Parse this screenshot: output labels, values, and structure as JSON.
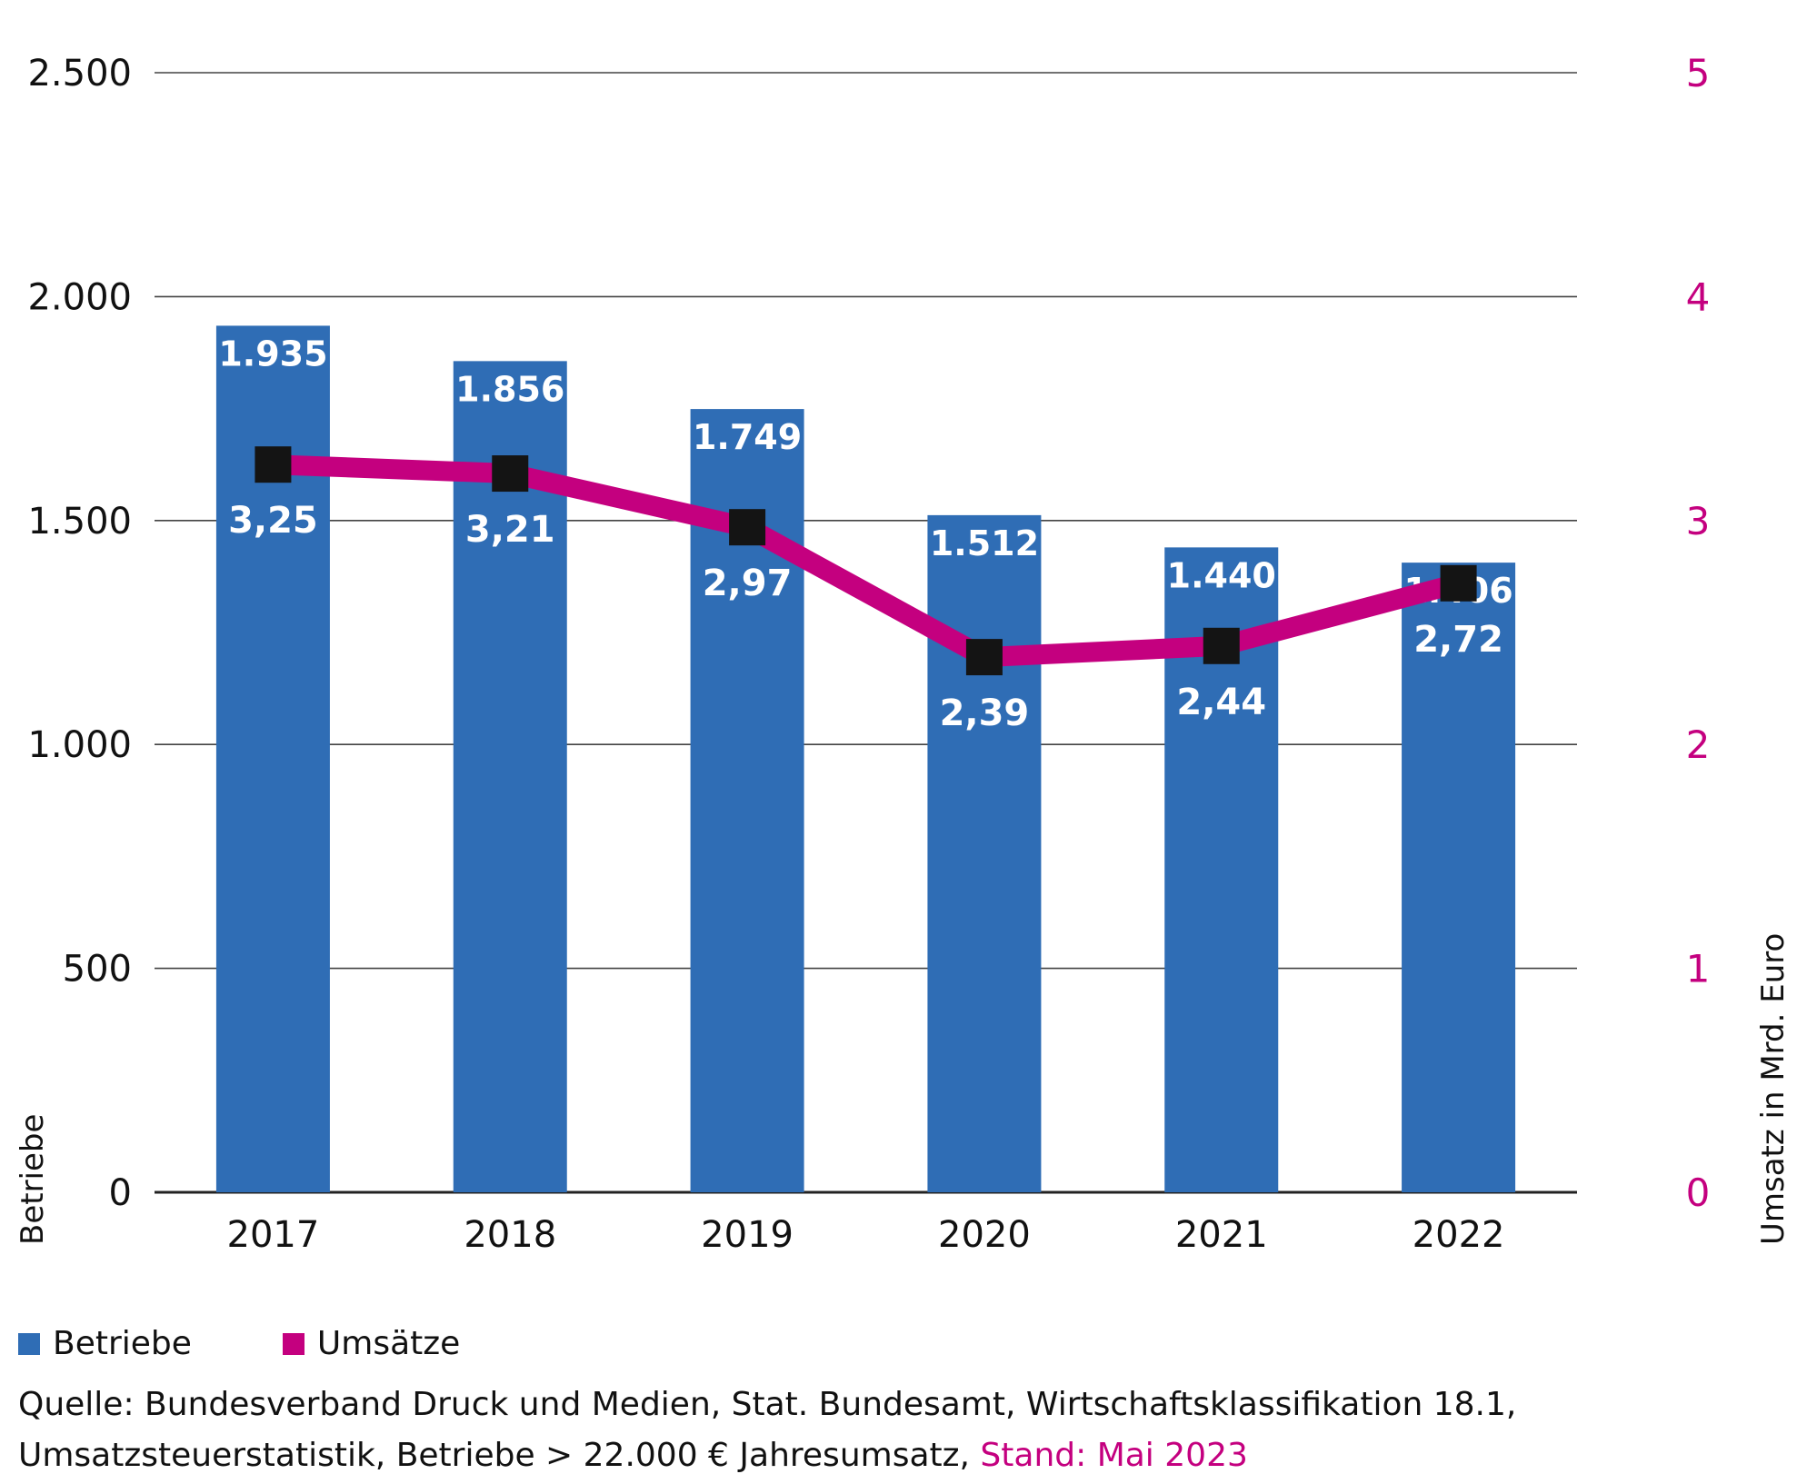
{
  "chart_data": {
    "type": "bar+line",
    "categories": [
      "2017",
      "2018",
      "2019",
      "2020",
      "2021",
      "2022"
    ],
    "series": [
      {
        "name": "Betriebe",
        "type": "bar",
        "axis": "left",
        "values": [
          1935,
          1856,
          1749,
          1512,
          1440,
          1406
        ],
        "labels": [
          "1.935",
          "1.856",
          "1.749",
          "1.512",
          "1.440",
          "1.406"
        ],
        "color": "#2f6db5"
      },
      {
        "name": "Umsätze",
        "type": "line",
        "axis": "right",
        "values": [
          3.25,
          3.21,
          2.97,
          2.39,
          2.44,
          2.72
        ],
        "labels": [
          "3,25",
          "3,21",
          "2,97",
          "2,39",
          "2,44",
          "2,72"
        ],
        "color": "#c4007f",
        "marker_color": "#141414"
      }
    ],
    "y_left": {
      "label": "Betriebe",
      "ylim": [
        0,
        2500
      ],
      "ticks": [
        0,
        500,
        1000,
        1500,
        2000,
        2500
      ],
      "tick_labels": [
        "0",
        "500",
        "1.000",
        "1.500",
        "2.000",
        "2.500"
      ]
    },
    "y_right": {
      "label": "Umsatz in Mrd. Euro",
      "ylim": [
        0,
        5
      ],
      "ticks": [
        0,
        1,
        2,
        3,
        4,
        5
      ],
      "tick_labels": [
        "0",
        "1",
        "2",
        "3",
        "4",
        "5"
      ],
      "color": "#c4007f"
    },
    "grid": true,
    "legend": {
      "placement": "bottom-left",
      "entries": [
        "Betriebe",
        "Umsätze"
      ]
    }
  },
  "source": {
    "line1": "Quelle: Bundesverband Druck und Medien, Stat. Bundesamt, Wirtschaftsklassifikation 18.1,",
    "line2_main": "Umsatzsteuerstatistik,  Betriebe > 22.000 € Jahresumsatz, ",
    "line2_highlight": "Stand: Mai 2023",
    "highlight_color": "#c4007f"
  }
}
